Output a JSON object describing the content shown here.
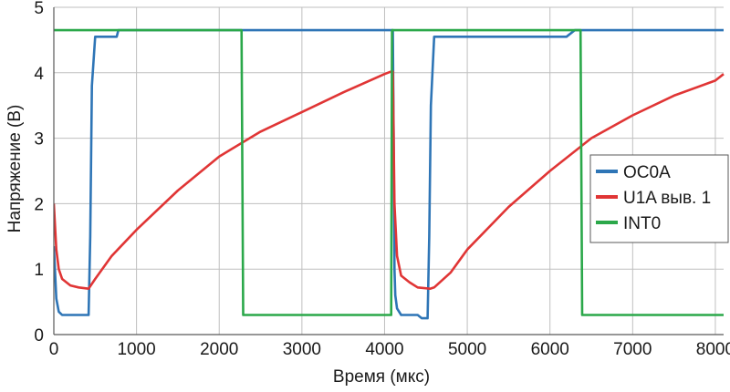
{
  "chart_data": {
    "type": "line",
    "xlabel": "Время (мкс)",
    "ylabel": "Напряжение (В)",
    "xlim": [
      0,
      8100
    ],
    "ylim": [
      0,
      5
    ],
    "x_ticks": [
      0,
      1000,
      2000,
      3000,
      4000,
      5000,
      6000,
      7000,
      8000
    ],
    "y_ticks": [
      0,
      1,
      2,
      3,
      4,
      5
    ],
    "grid": true,
    "legend_position": "right",
    "series": [
      {
        "name": "OC0A",
        "color": "#2e75b6",
        "x": [
          0,
          30,
          60,
          100,
          200,
          300,
          400,
          420,
          440,
          460,
          500,
          700,
          760,
          780,
          1000,
          2000,
          2250,
          2300,
          2400,
          4000,
          4080,
          4100,
          4110,
          4120,
          4130,
          4150,
          4200,
          4300,
          4400,
          4450,
          4500,
          4520,
          4540,
          4560,
          4600,
          6000,
          6200,
          6300,
          7000,
          8000,
          8100
        ],
        "y": [
          1.35,
          0.55,
          0.35,
          0.3,
          0.3,
          0.3,
          0.3,
          0.3,
          1.5,
          3.8,
          4.55,
          4.55,
          4.55,
          4.65,
          4.65,
          4.65,
          4.65,
          4.65,
          4.65,
          4.65,
          4.65,
          4.65,
          3.0,
          1.0,
          0.6,
          0.4,
          0.3,
          0.3,
          0.3,
          0.25,
          0.25,
          0.25,
          1.5,
          3.5,
          4.55,
          4.55,
          4.55,
          4.65,
          4.65,
          4.65,
          4.65
        ]
      },
      {
        "name": "U1A выв. 1",
        "color": "#e03535",
        "x": [
          0,
          30,
          60,
          100,
          200,
          300,
          420,
          500,
          700,
          1000,
          1500,
          2000,
          2500,
          3000,
          3500,
          4000,
          4080,
          4100,
          4120,
          4150,
          4200,
          4300,
          4400,
          4550,
          4600,
          4800,
          5000,
          5500,
          6000,
          6500,
          7000,
          7500,
          8000,
          8100
        ],
        "y": [
          2.0,
          1.3,
          1.0,
          0.85,
          0.75,
          0.72,
          0.7,
          0.85,
          1.2,
          1.6,
          2.2,
          2.72,
          3.1,
          3.4,
          3.7,
          3.98,
          4.02,
          4.02,
          2.0,
          1.2,
          0.9,
          0.8,
          0.72,
          0.7,
          0.72,
          0.95,
          1.3,
          1.95,
          2.5,
          3.0,
          3.35,
          3.65,
          3.88,
          3.98
        ]
      },
      {
        "name": "INT0",
        "color": "#2ba84a",
        "x": [
          0,
          2250,
          2270,
          2290,
          2300,
          4080,
          4090,
          4100,
          4110,
          6350,
          6370,
          6390,
          6400,
          8100
        ],
        "y": [
          4.65,
          4.65,
          4.65,
          0.3,
          0.3,
          0.3,
          4.65,
          4.65,
          4.65,
          4.65,
          4.65,
          0.3,
          0.3,
          0.3
        ]
      }
    ]
  }
}
